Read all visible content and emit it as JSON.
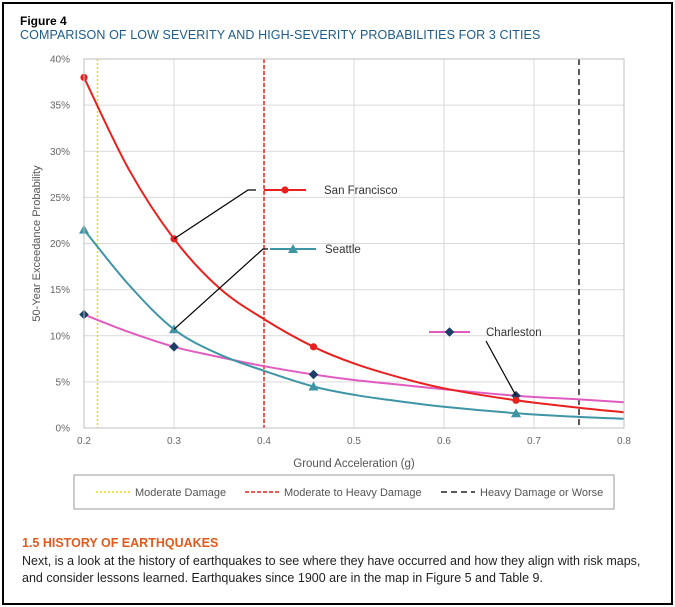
{
  "figure_label": "Figure 4",
  "figure_title": "COMPARISON OF LOW SEVERITY AND HIGH-SEVERITY PROBABILITIES FOR 3 CITIES",
  "section": {
    "heading": "1.5  HISTORY OF EARTHQUAKES",
    "body": "Next, is a look at the history of earthquakes to see where they have occurred and how they align with risk maps, and consider lessons learned. Earthquakes since 1900 are in the map in Figure 5 and Table 9."
  },
  "chart_data": {
    "type": "line",
    "title": "",
    "xlabel": "Ground Acceleration (g)",
    "ylabel": "50-Year Exceedance Probability",
    "xlim": [
      0.2,
      0.8
    ],
    "ylim": [
      0,
      0.4
    ],
    "x_ticks": [
      {
        "value": 0.2,
        "label": "0.2"
      },
      {
        "value": 0.3,
        "label": "0.3"
      },
      {
        "value": 0.4,
        "label": "0.4"
      },
      {
        "value": 0.5,
        "label": "0.5"
      },
      {
        "value": 0.6,
        "label": "0.6"
      },
      {
        "value": 0.7,
        "label": "0.7"
      },
      {
        "value": 0.8,
        "label": "0.8"
      }
    ],
    "y_ticks": [
      {
        "value": 0,
        "label": "0%"
      },
      {
        "value": 0.05,
        "label": "5%"
      },
      {
        "value": 0.1,
        "label": "10%"
      },
      {
        "value": 0.15,
        "label": "15%"
      },
      {
        "value": 0.2,
        "label": "20%"
      },
      {
        "value": 0.25,
        "label": "25%"
      },
      {
        "value": 0.3,
        "label": "30%"
      },
      {
        "value": 0.35,
        "label": "35%"
      },
      {
        "value": 0.4,
        "label": "40%"
      }
    ],
    "grid": true,
    "series": [
      {
        "name": "San Francisco",
        "color": "#e8211e",
        "marker": "circle",
        "points": [
          [
            0.2,
            0.38
          ],
          [
            0.3,
            0.205
          ],
          [
            0.455,
            0.088
          ],
          [
            0.68,
            0.03
          ]
        ],
        "curve": [
          [
            0.2,
            0.38
          ],
          [
            0.25,
            0.28
          ],
          [
            0.3,
            0.205
          ],
          [
            0.35,
            0.152
          ],
          [
            0.4,
            0.118
          ],
          [
            0.455,
            0.088
          ],
          [
            0.5,
            0.07
          ],
          [
            0.55,
            0.055
          ],
          [
            0.6,
            0.043
          ],
          [
            0.68,
            0.03
          ],
          [
            0.75,
            0.022
          ],
          [
            0.8,
            0.017
          ]
        ]
      },
      {
        "name": "Seattle",
        "color": "#3e95a5",
        "marker": "triangle",
        "points": [
          [
            0.2,
            0.215
          ],
          [
            0.3,
            0.107
          ],
          [
            0.455,
            0.045
          ],
          [
            0.68,
            0.016
          ]
        ],
        "curve": [
          [
            0.2,
            0.215
          ],
          [
            0.25,
            0.155
          ],
          [
            0.3,
            0.107
          ],
          [
            0.35,
            0.08
          ],
          [
            0.4,
            0.062
          ],
          [
            0.455,
            0.045
          ],
          [
            0.5,
            0.036
          ],
          [
            0.55,
            0.029
          ],
          [
            0.6,
            0.023
          ],
          [
            0.68,
            0.016
          ],
          [
            0.75,
            0.012
          ],
          [
            0.8,
            0.01
          ]
        ]
      },
      {
        "name": "Charleston",
        "color": "#e05cc0",
        "marker": "diamond",
        "marker_color": "#1b3f66",
        "points": [
          [
            0.2,
            0.123
          ],
          [
            0.3,
            0.088
          ],
          [
            0.455,
            0.058
          ],
          [
            0.68,
            0.035
          ]
        ],
        "curve": [
          [
            0.2,
            0.123
          ],
          [
            0.25,
            0.104
          ],
          [
            0.3,
            0.088
          ],
          [
            0.35,
            0.077
          ],
          [
            0.4,
            0.067
          ],
          [
            0.455,
            0.058
          ],
          [
            0.5,
            0.052
          ],
          [
            0.55,
            0.047
          ],
          [
            0.6,
            0.042
          ],
          [
            0.68,
            0.035
          ],
          [
            0.75,
            0.031
          ],
          [
            0.8,
            0.028
          ]
        ]
      }
    ],
    "thresholds": [
      {
        "name": "Moderate Damage",
        "x": 0.215,
        "color": "#f5d020",
        "dash": "dotted"
      },
      {
        "name": "Moderate to Heavy Damage",
        "x": 0.4,
        "color": "#e8211e",
        "dash": "short"
      },
      {
        "name": "Heavy Damage or Worse",
        "x": 0.75,
        "color": "#222222",
        "dash": "long"
      }
    ],
    "annotations": [
      {
        "series": "San Francisco",
        "label": "San Francisco",
        "target": [
          0.3,
          0.205
        ],
        "placement": "upper-middle"
      },
      {
        "series": "Seattle",
        "label": "Seattle",
        "target": [
          0.3,
          0.107
        ],
        "placement": "middle"
      },
      {
        "series": "Charleston",
        "label": "Charleston",
        "target": [
          0.68,
          0.035
        ],
        "placement": "right"
      }
    ],
    "legend_placement": "bottom"
  }
}
